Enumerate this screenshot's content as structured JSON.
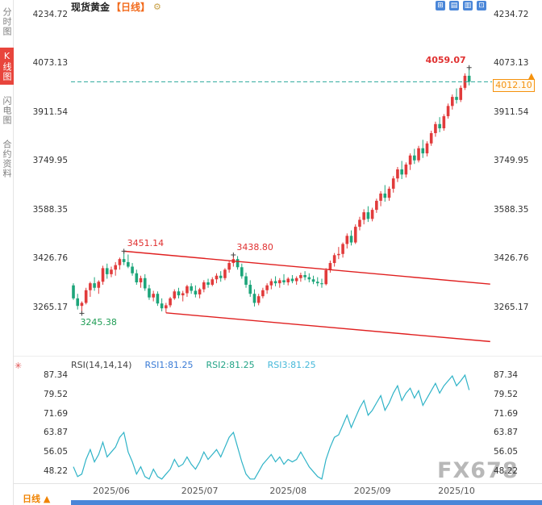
{
  "header": {
    "title": "现货黄金",
    "period_tag": "【日线】",
    "settings_icon": "⚙",
    "toolbar_icons": [
      {
        "name": "layout-grid-icon",
        "glyph": "⊞"
      },
      {
        "name": "kline-style-icon",
        "glyph": "▤"
      },
      {
        "name": "indicator-panel-icon",
        "glyph": "▥"
      },
      {
        "name": "fullscreen-icon",
        "glyph": "⊡"
      }
    ]
  },
  "sidebar": {
    "items": [
      {
        "label": "分时图",
        "active": false
      },
      {
        "label": "K线图",
        "active": true
      },
      {
        "label": "闪电图",
        "active": false
      },
      {
        "label": "合约资料",
        "active": false
      }
    ]
  },
  "main_chart": {
    "y_axis_labels": [
      "4234.72",
      "4073.13",
      "3911.54",
      "3749.95",
      "3588.35",
      "3426.76",
      "3265.17"
    ]
  },
  "rsi_panel": {
    "indicator_icon": "✳",
    "label": "RSI(14,14,14)",
    "rsi1": "RSI1:81.25",
    "rsi2": "RSI2:81.25",
    "rsi3": "RSI3:81.25",
    "y_axis_labels": [
      "87.34",
      "79.52",
      "71.69",
      "63.87",
      "56.05",
      "48.22"
    ]
  },
  "footer": {
    "period_label": "日线",
    "arrow_glyph": "▲"
  },
  "price_marker": {
    "label": "4012.10",
    "arrow_glyph": "▲"
  },
  "watermark": "FX678",
  "colors": {
    "up": "#e13b3b",
    "down": "#1da57a",
    "trendline": "#e02020",
    "dashed": "#2aa79b",
    "rsi_line": "#2fb3c7",
    "accent_orange": "#f5920d",
    "sidebar_active": "#e8453c",
    "toolbar_blue": "#4a86d8"
  },
  "chart_data": {
    "type": "candlestick",
    "title": "现货黄金 日线 (Spot Gold Daily)",
    "price_axis": [
      4234.72,
      4073.13,
      3911.54,
      3749.95,
      3588.35,
      3426.76,
      3265.17
    ],
    "current_price": 4012.1,
    "session_high": 4059.07,
    "candles": [
      [
        3338,
        3345,
        3290,
        3295
      ],
      [
        3295,
        3310,
        3258,
        3270
      ],
      [
        3270,
        3285,
        3245.38,
        3280
      ],
      [
        3280,
        3330,
        3275,
        3322
      ],
      [
        3322,
        3350,
        3300,
        3345
      ],
      [
        3345,
        3365,
        3320,
        3330
      ],
      [
        3330,
        3355,
        3310,
        3350
      ],
      [
        3350,
        3403,
        3340,
        3395
      ],
      [
        3395,
        3410,
        3360,
        3375
      ],
      [
        3375,
        3400,
        3365,
        3390
      ],
      [
        3390,
        3415,
        3370,
        3405
      ],
      [
        3405,
        3430,
        3390,
        3425
      ],
      [
        3425,
        3451.14,
        3405,
        3415
      ],
      [
        3415,
        3440,
        3395,
        3400
      ],
      [
        3400,
        3412,
        3370,
        3378
      ],
      [
        3378,
        3390,
        3340,
        3348
      ],
      [
        3348,
        3370,
        3330,
        3362
      ],
      [
        3362,
        3375,
        3320,
        3328
      ],
      [
        3328,
        3340,
        3290,
        3298
      ],
      [
        3298,
        3320,
        3285,
        3310
      ],
      [
        3310,
        3318,
        3270,
        3278
      ],
      [
        3278,
        3295,
        3252,
        3262
      ],
      [
        3262,
        3280,
        3247,
        3272
      ],
      [
        3272,
        3300,
        3265,
        3295
      ],
      [
        3295,
        3325,
        3290,
        3318
      ],
      [
        3318,
        3330,
        3295,
        3305
      ],
      [
        3305,
        3320,
        3285,
        3312
      ],
      [
        3312,
        3340,
        3300,
        3335
      ],
      [
        3335,
        3345,
        3310,
        3320
      ],
      [
        3320,
        3338,
        3298,
        3308
      ],
      [
        3308,
        3330,
        3295,
        3325
      ],
      [
        3325,
        3355,
        3315,
        3348
      ],
      [
        3348,
        3360,
        3330,
        3340
      ],
      [
        3340,
        3365,
        3335,
        3358
      ],
      [
        3358,
        3378,
        3345,
        3370
      ],
      [
        3370,
        3385,
        3350,
        3362
      ],
      [
        3362,
        3395,
        3355,
        3390
      ],
      [
        3390,
        3420,
        3380,
        3412
      ],
      [
        3412,
        3438.8,
        3400,
        3425
      ],
      [
        3425,
        3435,
        3390,
        3398
      ],
      [
        3398,
        3410,
        3360,
        3368
      ],
      [
        3368,
        3380,
        3330,
        3340
      ],
      [
        3340,
        3355,
        3300,
        3310
      ],
      [
        3310,
        3325,
        3268,
        3280
      ],
      [
        3280,
        3310,
        3272,
        3302
      ],
      [
        3302,
        3330,
        3295,
        3322
      ],
      [
        3322,
        3345,
        3310,
        3338
      ],
      [
        3338,
        3360,
        3325,
        3352
      ],
      [
        3352,
        3368,
        3335,
        3345
      ],
      [
        3345,
        3362,
        3330,
        3355
      ],
      [
        3355,
        3375,
        3340,
        3348
      ],
      [
        3348,
        3365,
        3338,
        3360
      ],
      [
        3360,
        3372,
        3345,
        3352
      ],
      [
        3352,
        3368,
        3340,
        3362
      ],
      [
        3362,
        3380,
        3350,
        3372
      ],
      [
        3372,
        3385,
        3355,
        3365
      ],
      [
        3365,
        3378,
        3348,
        3358
      ],
      [
        3358,
        3370,
        3342,
        3350
      ],
      [
        3350,
        3365,
        3335,
        3345
      ],
      [
        3345,
        3360,
        3330,
        3342
      ],
      [
        3342,
        3395,
        3338,
        3388
      ],
      [
        3388,
        3420,
        3380,
        3412
      ],
      [
        3412,
        3445,
        3400,
        3438
      ],
      [
        3438,
        3465,
        3425,
        3442
      ],
      [
        3442,
        3480,
        3430,
        3475
      ],
      [
        3475,
        3510,
        3460,
        3502
      ],
      [
        3502,
        3520,
        3470,
        3480
      ],
      [
        3480,
        3540,
        3475,
        3532
      ],
      [
        3532,
        3565,
        3520,
        3555
      ],
      [
        3555,
        3590,
        3540,
        3580
      ],
      [
        3580,
        3600,
        3548,
        3558
      ],
      [
        3558,
        3595,
        3550,
        3588
      ],
      [
        3588,
        3625,
        3578,
        3618
      ],
      [
        3618,
        3650,
        3600,
        3642
      ],
      [
        3642,
        3670,
        3615,
        3628
      ],
      [
        3628,
        3665,
        3618,
        3658
      ],
      [
        3658,
        3700,
        3645,
        3692
      ],
      [
        3692,
        3730,
        3680,
        3722
      ],
      [
        3722,
        3750,
        3690,
        3705
      ],
      [
        3705,
        3745,
        3695,
        3738
      ],
      [
        3738,
        3775,
        3720,
        3768
      ],
      [
        3768,
        3790,
        3740,
        3752
      ],
      [
        3752,
        3800,
        3745,
        3792
      ],
      [
        3792,
        3820,
        3760,
        3775
      ],
      [
        3775,
        3815,
        3765,
        3808
      ],
      [
        3808,
        3850,
        3800,
        3842
      ],
      [
        3842,
        3880,
        3830,
        3872
      ],
      [
        3872,
        3895,
        3845,
        3858
      ],
      [
        3858,
        3905,
        3850,
        3898
      ],
      [
        3898,
        3940,
        3890,
        3932
      ],
      [
        3932,
        3970,
        3920,
        3962
      ],
      [
        3962,
        3990,
        3940,
        3952
      ],
      [
        3952,
        4000,
        3945,
        3992
      ],
      [
        3992,
        4040,
        3985,
        4032
      ],
      [
        4032,
        4059.07,
        4000,
        4012.1
      ]
    ],
    "annotations": [
      {
        "text": "3451.14",
        "index": 12,
        "price": 3451.14,
        "placement": "above-right",
        "color": "#e03030"
      },
      {
        "text": "3438.80",
        "index": 38,
        "price": 3438.8,
        "placement": "above-right",
        "color": "#e03030"
      },
      {
        "text": "3245.38",
        "index": 2,
        "price": 3245.38,
        "placement": "below-right",
        "color": "#1f9d55"
      },
      {
        "text": "4059.07",
        "index": 94,
        "price": 4059.07,
        "placement": "above-left",
        "color": "#e03030"
      }
    ],
    "trendlines": [
      {
        "from": {
          "index": 12,
          "price": 3451.14
        },
        "to": {
          "index": 99,
          "price": 3342
        }
      },
      {
        "from": {
          "index": 22,
          "price": 3247
        },
        "to": {
          "index": 99,
          "price": 3152
        }
      }
    ],
    "x_ticks": [
      {
        "label": "2025/06",
        "index": 9
      },
      {
        "label": "2025/07",
        "index": 30
      },
      {
        "label": "2025/08",
        "index": 51
      },
      {
        "label": "2025/09",
        "index": 71
      },
      {
        "label": "2025/10",
        "index": 91
      }
    ],
    "rsi": {
      "label": "RSI(14,14,14)",
      "axis": [
        87.34,
        79.52,
        71.69,
        63.87,
        56.05,
        48.22
      ],
      "current": 81.25,
      "values": [
        50,
        46,
        47,
        53,
        57,
        52,
        55,
        60,
        54,
        56,
        58,
        62,
        64,
        56,
        52,
        47,
        50,
        46,
        45,
        49,
        46,
        45,
        47,
        49,
        53,
        50,
        51,
        54,
        51,
        49,
        52,
        56,
        53,
        55,
        57,
        54,
        58,
        62,
        64,
        58,
        52,
        47,
        45,
        45,
        48,
        51,
        53,
        55,
        52,
        54,
        51,
        53,
        52,
        53,
        56,
        53,
        50,
        48,
        46,
        45,
        53,
        58,
        62,
        63,
        67,
        71,
        66,
        70,
        74,
        77,
        71,
        73,
        76,
        79,
        73,
        76,
        80,
        83,
        77,
        80,
        82,
        78,
        81,
        75,
        78,
        81,
        84,
        80,
        83,
        85,
        87,
        83,
        85,
        87.34,
        81.25
      ]
    }
  }
}
